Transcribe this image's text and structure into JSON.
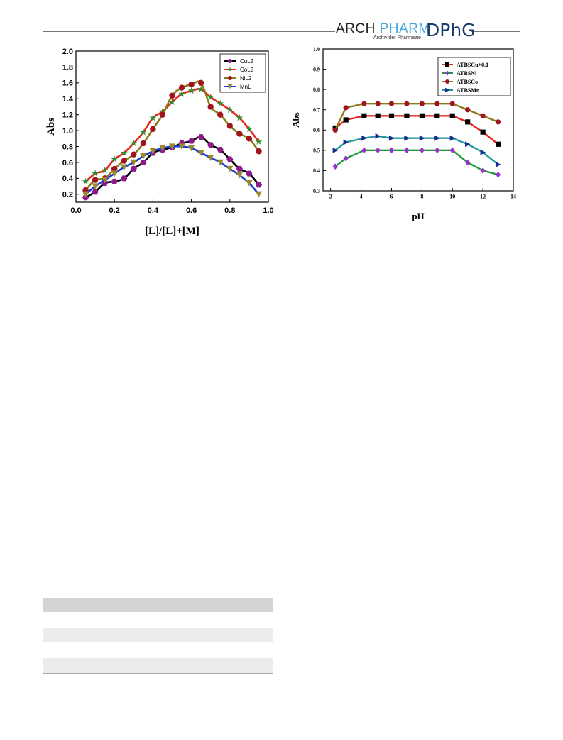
{
  "header": {
    "logo_arch": "ARCH",
    "logo_pharm": "PHARM",
    "logo_sub": "Archiv der Pharmazie",
    "logo_dphg": "DPhG"
  },
  "chart_data": [
    {
      "type": "line",
      "xlabel": "[L]/[L]+[M]",
      "ylabel": "Abs",
      "xlim": [
        0.0,
        1.0
      ],
      "ylim": [
        0.1,
        2.0
      ],
      "xticks": [
        "0.0",
        "0.2",
        "0.4",
        "0.6",
        "0.8",
        "1.0"
      ],
      "yticks": [
        "0.2",
        "0.4",
        "0.6",
        "0.8",
        "1.0",
        "1.2",
        "1.4",
        "1.6",
        "1.8",
        "2.0"
      ],
      "legend_position": "top-right",
      "grid": false,
      "series": [
        {
          "name": "CuL2",
          "color": "#000000",
          "marker_color": "#8b1a8b",
          "marker": "hexagon",
          "x": [
            0.05,
            0.1,
            0.15,
            0.2,
            0.25,
            0.3,
            0.35,
            0.4,
            0.45,
            0.5,
            0.55,
            0.6,
            0.65,
            0.7,
            0.75,
            0.8,
            0.85,
            0.9,
            0.95
          ],
          "y": [
            0.16,
            0.23,
            0.34,
            0.36,
            0.4,
            0.52,
            0.6,
            0.72,
            0.76,
            0.79,
            0.84,
            0.87,
            0.92,
            0.82,
            0.76,
            0.64,
            0.52,
            0.46,
            0.32
          ]
        },
        {
          "name": "CoL2",
          "color": "#e8281e",
          "marker_color": "#2e8b2e",
          "marker": "star",
          "x": [
            0.05,
            0.1,
            0.15,
            0.2,
            0.25,
            0.3,
            0.35,
            0.4,
            0.45,
            0.5,
            0.55,
            0.6,
            0.65,
            0.7,
            0.75,
            0.8,
            0.85,
            0.9,
            0.95
          ],
          "y": [
            0.36,
            0.46,
            0.5,
            0.64,
            0.72,
            0.84,
            0.98,
            1.16,
            1.24,
            1.36,
            1.46,
            1.5,
            1.52,
            1.42,
            1.34,
            1.26,
            1.16,
            1.02,
            0.86
          ]
        },
        {
          "name": "NiL2",
          "color": "#8b7a1a",
          "marker_color": "#a0141e",
          "marker": "circle",
          "x": [
            0.05,
            0.1,
            0.15,
            0.2,
            0.25,
            0.3,
            0.35,
            0.4,
            0.45,
            0.5,
            0.55,
            0.6,
            0.65,
            0.7,
            0.75,
            0.8,
            0.85,
            0.9,
            0.95
          ],
          "y": [
            0.25,
            0.38,
            0.4,
            0.52,
            0.62,
            0.7,
            0.84,
            1.02,
            1.2,
            1.44,
            1.54,
            1.58,
            1.6,
            1.3,
            1.2,
            1.06,
            0.96,
            0.9,
            0.74
          ]
        },
        {
          "name": "MnL",
          "color": "#1a3cd6",
          "marker_color": "#9a8a2a",
          "marker": "triangle",
          "x": [
            0.05,
            0.1,
            0.15,
            0.2,
            0.25,
            0.3,
            0.35,
            0.4,
            0.45,
            0.5,
            0.55,
            0.6,
            0.65,
            0.7,
            0.75,
            0.8,
            0.85,
            0.9,
            0.95
          ],
          "y": [
            0.2,
            0.3,
            0.38,
            0.46,
            0.54,
            0.6,
            0.68,
            0.74,
            0.78,
            0.8,
            0.8,
            0.78,
            0.72,
            0.66,
            0.6,
            0.52,
            0.44,
            0.34,
            0.2
          ]
        }
      ]
    },
    {
      "type": "line",
      "xlabel": "pH",
      "ylabel": "Abs",
      "xlim": [
        1.5,
        14
      ],
      "ylim": [
        0.3,
        1.0
      ],
      "xticks": [
        "2",
        "4",
        "6",
        "8",
        "10",
        "12",
        "14"
      ],
      "yticks": [
        "0.3",
        "0.4",
        "0.5",
        "0.6",
        "0.7",
        "0.8",
        "0.9",
        "1.0"
      ],
      "legend_position": "top-right",
      "grid": false,
      "series": [
        {
          "name": "ATBSCu+0.1",
          "color": "#e8281e",
          "marker_color": "#000000",
          "marker": "square",
          "x": [
            2.3,
            3,
            4.2,
            5.1,
            6,
            7,
            8,
            9,
            10,
            11,
            12,
            13
          ],
          "y": [
            0.61,
            0.65,
            0.67,
            0.67,
            0.67,
            0.67,
            0.67,
            0.67,
            0.67,
            0.64,
            0.59,
            0.53
          ]
        },
        {
          "name": "ATBSNi",
          "color": "#1e9a3a",
          "marker_color": "#9932cc",
          "marker": "diamond",
          "x": [
            2.3,
            3,
            4.2,
            5.1,
            6,
            7,
            8,
            9,
            10,
            11,
            12,
            13
          ],
          "y": [
            0.42,
            0.46,
            0.5,
            0.5,
            0.5,
            0.5,
            0.5,
            0.5,
            0.5,
            0.44,
            0.4,
            0.38
          ]
        },
        {
          "name": "ATBSCo",
          "color": "#8b7a1a",
          "marker_color": "#a0141e",
          "marker": "circle",
          "x": [
            2.3,
            3,
            4.2,
            5.1,
            6,
            7,
            8,
            9,
            10,
            11,
            12,
            13
          ],
          "y": [
            0.6,
            0.71,
            0.73,
            0.73,
            0.73,
            0.73,
            0.73,
            0.73,
            0.73,
            0.7,
            0.67,
            0.64
          ]
        },
        {
          "name": "ATBSMn",
          "color": "#1e9aa0",
          "marker_color": "#1a2a8a",
          "marker": "triangle-right",
          "x": [
            2.3,
            3,
            4.2,
            5.1,
            6,
            7,
            8,
            9,
            10,
            11,
            12,
            13
          ],
          "y": [
            0.5,
            0.54,
            0.56,
            0.57,
            0.56,
            0.56,
            0.56,
            0.56,
            0.56,
            0.53,
            0.49,
            0.43
          ]
        }
      ]
    }
  ],
  "table": {
    "rows": [
      "dark",
      "white",
      "light",
      "white",
      "light"
    ]
  }
}
